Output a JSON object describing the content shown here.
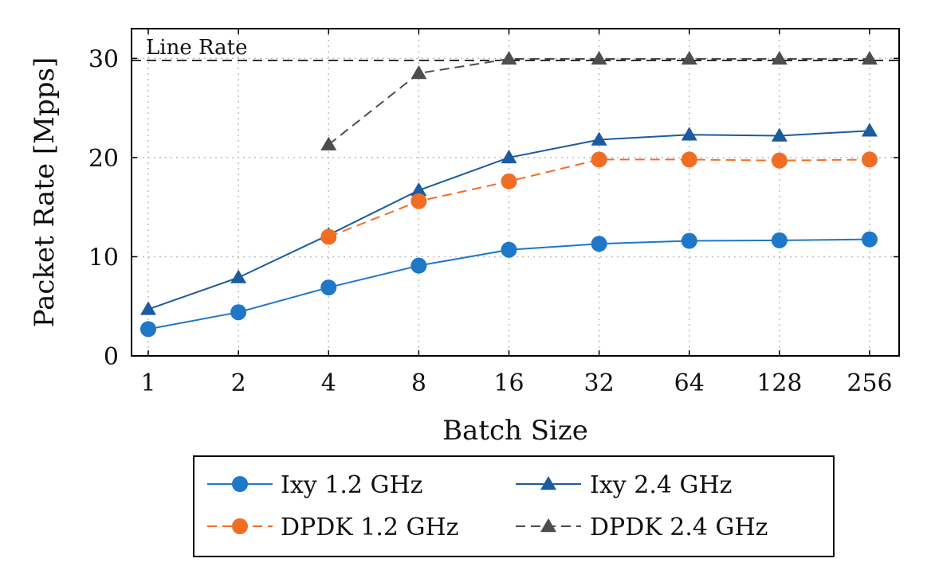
{
  "chart_data": {
    "type": "line",
    "x_categories": [
      "1",
      "2",
      "4",
      "8",
      "16",
      "32",
      "64",
      "128",
      "256"
    ],
    "xlabel": "Batch Size",
    "ylabel": "Packet Rate [Mpps]",
    "ylim": [
      0,
      33
    ],
    "yticks": [
      0,
      10,
      20,
      30
    ],
    "grid": true,
    "legend_position": "below",
    "annotations": [
      {
        "text": "Line Rate",
        "y": 29.8
      }
    ],
    "series": [
      {
        "name": "Ixy 1.2 GHz",
        "color": "#1f77c8",
        "marker": "circle",
        "dashed": false,
        "values": [
          2.7,
          4.4,
          6.9,
          9.1,
          10.7,
          11.3,
          11.6,
          11.65,
          11.75
        ]
      },
      {
        "name": "Ixy 2.4 GHz",
        "color": "#1b5b9e",
        "marker": "triangle",
        "dashed": false,
        "values": [
          4.7,
          7.9,
          12.2,
          16.7,
          20.0,
          21.8,
          22.3,
          22.2,
          22.7
        ]
      },
      {
        "name": "DPDK 1.2 GHz",
        "color": "#f26d24",
        "marker": "circle",
        "dashed": true,
        "values": [
          null,
          null,
          12.0,
          15.6,
          17.6,
          19.8,
          19.8,
          19.7,
          19.8
        ]
      },
      {
        "name": "DPDK 2.4 GHz",
        "color": "#4d4d4d",
        "marker": "triangle",
        "dashed": true,
        "values": [
          null,
          null,
          21.3,
          28.5,
          29.95,
          29.95,
          29.95,
          29.95,
          29.95
        ]
      }
    ]
  }
}
